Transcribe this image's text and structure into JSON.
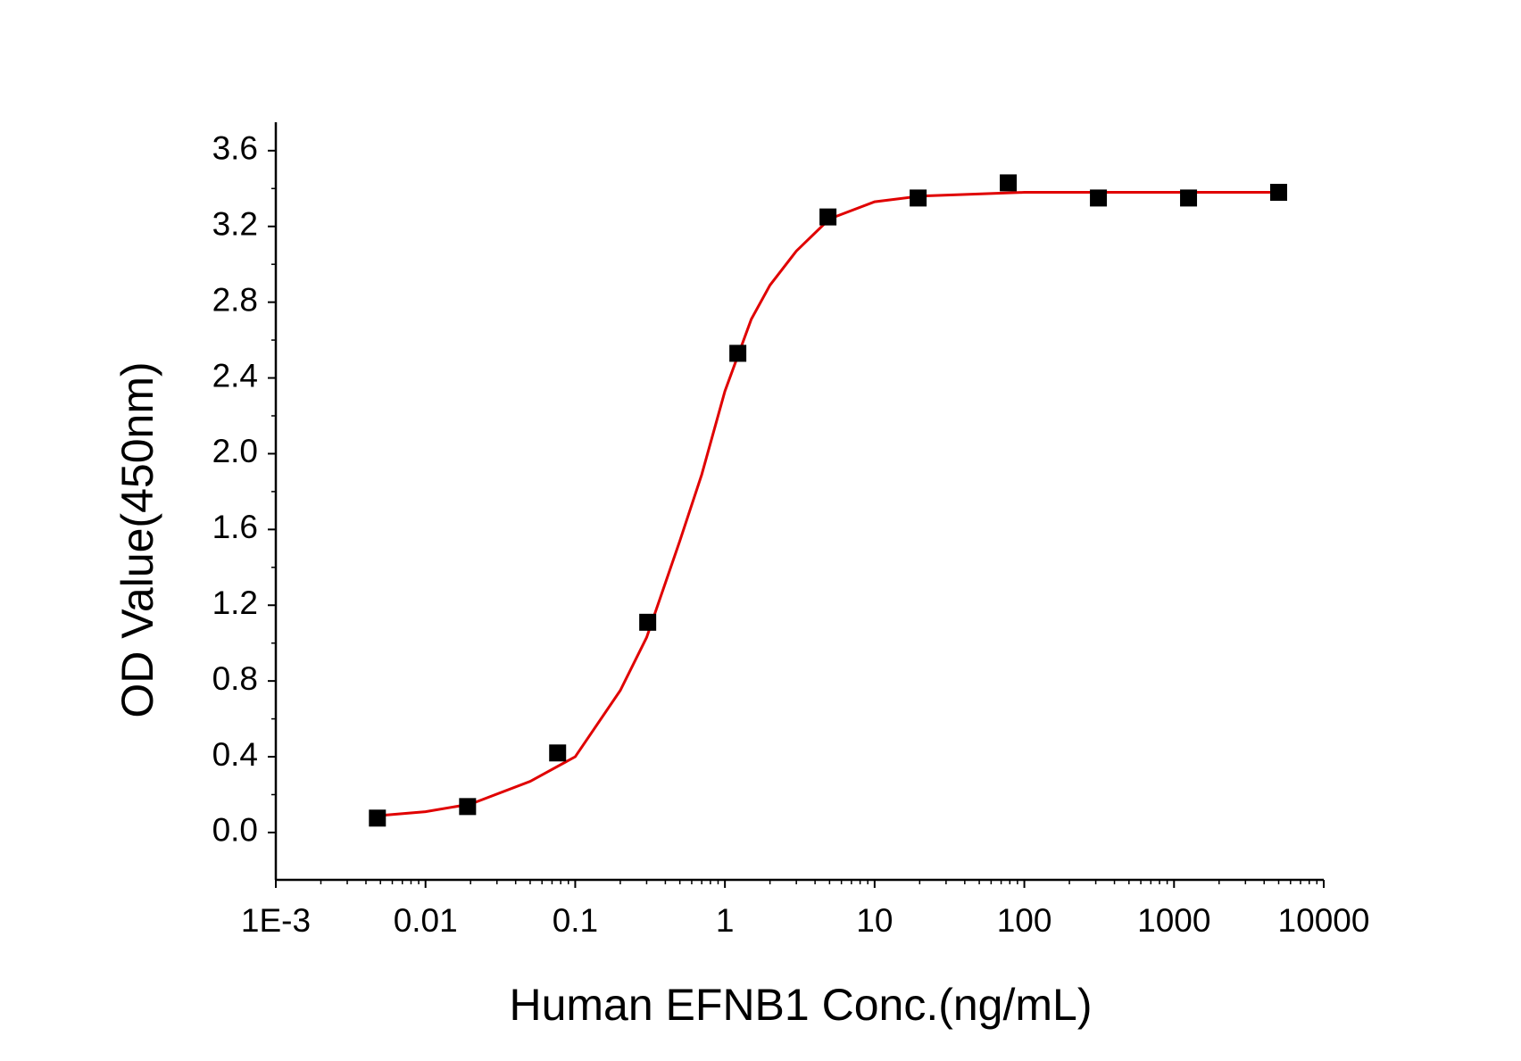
{
  "chart_data": {
    "type": "scatter",
    "xlabel": "Human EFNB1 Conc.(ng/mL)",
    "ylabel": "OD Value(450nm)",
    "xscale": "log",
    "xlim": [
      0.001,
      10000
    ],
    "xticks": [
      {
        "value": 0.001,
        "label": "1E-3"
      },
      0.01,
      0.1,
      1,
      10,
      100,
      1000,
      10000
    ],
    "ylim": [
      -0.25,
      3.75
    ],
    "yticks": [
      {
        "value": 0,
        "label": "0.0"
      },
      0.4,
      0.8,
      1.2,
      1.6,
      {
        "value": 2,
        "label": "2.0"
      },
      2.4,
      2.8,
      3.2,
      3.6
    ],
    "color": "#000000",
    "x": [
      0.00477,
      0.0191,
      0.0763,
      0.305,
      1.22,
      4.88,
      19.53,
      78.125,
      312.5,
      1250,
      5000
    ],
    "values": [
      0.076,
      0.137,
      0.42,
      1.11,
      2.53,
      3.25,
      3.35,
      3.43,
      3.35,
      3.35,
      3.38
    ],
    "fit": {
      "color": "#e00000",
      "x": [
        0.005,
        0.01,
        0.02,
        0.05,
        0.1,
        0.2,
        0.3,
        0.5,
        0.7,
        1,
        1.5,
        2,
        3,
        5,
        10,
        20,
        100,
        5000
      ],
      "values": [
        0.09,
        0.11,
        0.15,
        0.27,
        0.4,
        0.75,
        1.03,
        1.54,
        1.89,
        2.33,
        2.71,
        2.89,
        3.07,
        3.24,
        3.33,
        3.36,
        3.38,
        3.38
      ]
    }
  }
}
